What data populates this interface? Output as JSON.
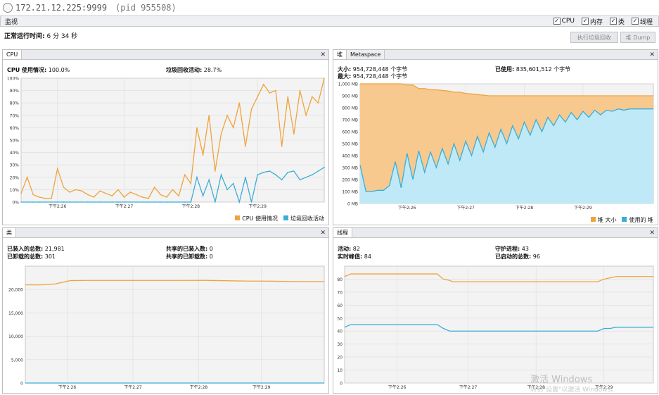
{
  "window": {
    "title": "172.21.12.225:9999",
    "pid": "(pid 955508)"
  },
  "tabbar": {
    "tab": "监视",
    "checks": [
      {
        "label": "CPU",
        "checked": true
      },
      {
        "label": "内存",
        "checked": true
      },
      {
        "label": "类",
        "checked": true
      },
      {
        "label": "线程",
        "checked": true
      }
    ]
  },
  "uptime": {
    "label": "正常运行时间:",
    "value": "6 分 34 秒"
  },
  "buttons": {
    "gc": "执行垃圾回收",
    "dump": "堆 Dump"
  },
  "colors": {
    "orange": "#f0a33c",
    "blue": "#3aaed8",
    "orange_fill": "#f7c98f",
    "blue_fill": "#bfe9f7"
  },
  "x_ticks": [
    "下午2:26",
    "下午2:27",
    "下午2:28",
    "下午2:29"
  ],
  "cpu_panel": {
    "tab": "CPU",
    "cpu_usage_label": "CPU 使用情况:",
    "cpu_usage_value": "100.0%",
    "gc_label": "垃圾回收活动:",
    "gc_value": "28.7%",
    "legend": [
      "CPU 使用情况",
      "垃圾回收活动"
    ]
  },
  "heap_panel": {
    "tabs": [
      "堆",
      "Metaspace"
    ],
    "size_label": "大小:",
    "size_value": "954,728,448 个字节",
    "max_label": "最大:",
    "max_value": "954,728,448 个字节",
    "used_label": "已使用:",
    "used_value": "835,601,512 个字节",
    "legend": [
      "堆 大小",
      "使用的 堆"
    ]
  },
  "classes_panel": {
    "tab": "类",
    "loaded_label": "已装入的总数:",
    "loaded_value": "21,981",
    "unloaded_label": "已卸载的总数:",
    "unloaded_value": "301",
    "shared_loaded_label": "共享的已装入数:",
    "shared_loaded_value": "0",
    "shared_unloaded_label": "共享的已卸载数:",
    "shared_unloaded_value": "0"
  },
  "threads_panel": {
    "tab": "线程",
    "live_label": "活动:",
    "live_value": "82",
    "peak_label": "实时峰值:",
    "peak_value": "84",
    "daemon_label": "守护进程:",
    "daemon_value": "43",
    "started_label": "已启动的总数:",
    "started_value": "96"
  },
  "watermark": {
    "line1": "激活 Windows",
    "line2": "转到\"设置\"以激活 Windows。"
  },
  "chart_data": [
    {
      "type": "line",
      "name": "CPU",
      "ylim": [
        0,
        100
      ],
      "y_ticks": [
        "0%",
        "10%",
        "20%",
        "30%",
        "40%",
        "50%",
        "60%",
        "70%",
        "80%",
        "90%",
        "100%"
      ],
      "x": [
        0,
        2,
        4,
        6,
        8,
        10,
        12,
        14,
        16,
        18,
        20,
        22,
        24,
        26,
        28,
        30,
        32,
        34,
        36,
        38,
        40,
        42,
        44,
        46,
        48,
        50,
        52,
        54,
        56,
        58,
        60,
        62,
        64,
        66,
        68,
        70,
        72,
        74,
        76,
        78,
        80,
        82,
        84,
        86,
        88,
        90,
        92,
        94,
        96,
        98,
        100
      ],
      "series": [
        {
          "name": "CPU 使用情况",
          "color": "#f0a33c",
          "values": [
            7,
            20,
            6,
            4,
            3,
            3,
            27,
            12,
            8,
            10,
            9,
            6,
            4,
            9,
            7,
            5,
            10,
            4,
            8,
            6,
            4,
            3,
            12,
            6,
            4,
            10,
            5,
            22,
            15,
            60,
            38,
            70,
            25,
            55,
            70,
            60,
            80,
            45,
            75,
            85,
            95,
            88,
            90,
            45,
            85,
            55,
            90,
            70,
            85,
            80,
            100
          ]
        },
        {
          "name": "垃圾回收活动",
          "color": "#3aaed8",
          "values": [
            0,
            0,
            0,
            0,
            0,
            0,
            0,
            0,
            0,
            0,
            0,
            0,
            0,
            0,
            0,
            0,
            0,
            0,
            0,
            0,
            0,
            0,
            0,
            0,
            0,
            0,
            0,
            0,
            0,
            20,
            5,
            18,
            0,
            22,
            10,
            15,
            0,
            20,
            0,
            22,
            24,
            25,
            22,
            18,
            24,
            25,
            18,
            20,
            22,
            25,
            28
          ]
        }
      ]
    },
    {
      "type": "area",
      "name": "Heap",
      "ylim": [
        0,
        1000
      ],
      "y_ticks": [
        "0 MB",
        "100 MB",
        "200 MB",
        "300 MB",
        "400 MB",
        "500 MB",
        "600 MB",
        "700 MB",
        "800 MB",
        "900 MB",
        "1,000 MB"
      ],
      "x": [
        0,
        2,
        4,
        6,
        8,
        10,
        12,
        14,
        16,
        18,
        20,
        22,
        24,
        26,
        28,
        30,
        32,
        34,
        36,
        38,
        40,
        42,
        44,
        46,
        48,
        50,
        52,
        54,
        56,
        58,
        60,
        62,
        64,
        66,
        68,
        70,
        72,
        74,
        76,
        78,
        80,
        82,
        84,
        86,
        88,
        90,
        92,
        94,
        96,
        98,
        100
      ],
      "series": [
        {
          "name": "堆 大小",
          "color": "#f0a33c",
          "values": [
            1000,
            1000,
            1000,
            1000,
            1000,
            1000,
            1000,
            1000,
            990,
            990,
            960,
            960,
            950,
            950,
            945,
            940,
            930,
            930,
            920,
            915,
            910,
            905,
            900,
            900,
            900,
            900,
            900,
            900,
            900,
            900,
            900,
            900,
            900,
            900,
            900,
            900,
            900,
            900,
            900,
            900,
            900,
            900,
            900,
            900,
            900,
            900,
            900,
            900,
            900,
            900,
            900
          ]
        },
        {
          "name": "使用的 堆",
          "color": "#3aaed8",
          "values": [
            320,
            100,
            100,
            110,
            110,
            150,
            350,
            130,
            420,
            200,
            440,
            260,
            430,
            300,
            460,
            330,
            500,
            360,
            520,
            400,
            560,
            430,
            590,
            470,
            620,
            500,
            650,
            540,
            680,
            570,
            700,
            600,
            720,
            650,
            740,
            680,
            760,
            700,
            770,
            720,
            780,
            740,
            780,
            770,
            790,
            780,
            790,
            790,
            790,
            790,
            790
          ]
        }
      ]
    },
    {
      "type": "line",
      "name": "Classes",
      "ylim": [
        0,
        25000
      ],
      "y_ticks": [
        "0",
        "5,000",
        "10,000",
        "15,000",
        "20,000"
      ],
      "x": [
        0,
        5,
        10,
        15,
        20,
        30,
        40,
        50,
        60,
        70,
        75,
        80,
        90,
        100
      ],
      "series": [
        {
          "color": "#f0a33c",
          "values": [
            21000,
            21000,
            21200,
            21900,
            21950,
            21950,
            21950,
            21950,
            21960,
            21850,
            21800,
            21800,
            21700,
            21700
          ]
        },
        {
          "color": "#3aaed8",
          "values": [
            0,
            0,
            0,
            0,
            0,
            0,
            0,
            0,
            0,
            0,
            0,
            0,
            0,
            0
          ]
        }
      ]
    },
    {
      "type": "line",
      "name": "Threads",
      "ylim": [
        0,
        90
      ],
      "y_ticks": [
        "0",
        "10",
        "20",
        "30",
        "40",
        "50",
        "60",
        "70",
        "80"
      ],
      "x": [
        0,
        2,
        4,
        30,
        32,
        34,
        35,
        60,
        82,
        84,
        86,
        88,
        100
      ],
      "series": [
        {
          "color": "#f0a33c",
          "values": [
            82,
            84,
            84,
            84,
            80,
            79,
            78,
            78,
            78,
            80,
            81,
            82,
            82
          ]
        },
        {
          "color": "#3aaed8",
          "values": [
            43,
            45,
            45,
            45,
            42,
            40,
            40,
            40,
            40,
            42,
            42,
            43,
            43
          ]
        }
      ]
    }
  ]
}
